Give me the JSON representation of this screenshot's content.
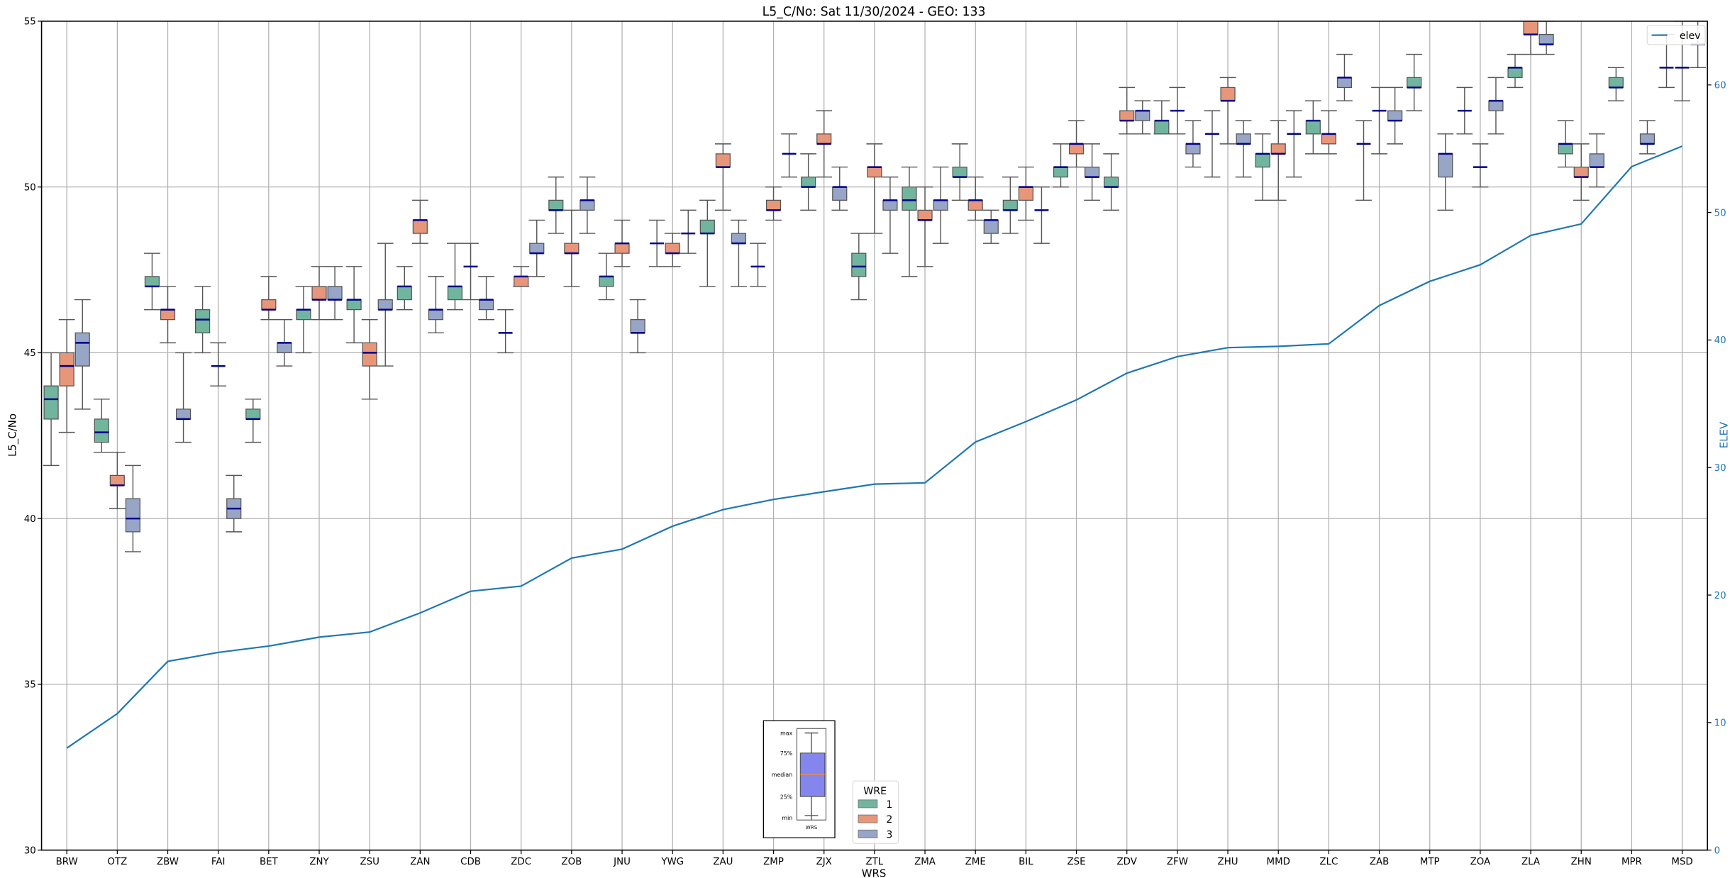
{
  "chart_data": {
    "type": "box",
    "title": "L5_C/No: Sat 11/30/2024 - GEO: 133",
    "xlabel": "WRS",
    "ylabel": "L5_C/No",
    "ylabel_right": "ELEV",
    "ylim": [
      30,
      55
    ],
    "ylim_right": [
      0,
      65
    ],
    "yticks": [
      30,
      35,
      40,
      45,
      50,
      55
    ],
    "yticks_right": [
      0,
      10,
      20,
      30,
      40,
      50,
      60
    ],
    "grid": true,
    "categories": [
      "BRW",
      "OTZ",
      "ZBW",
      "FAI",
      "BET",
      "ZNY",
      "ZSU",
      "ZAN",
      "CDB",
      "ZDC",
      "ZOB",
      "JNU",
      "YWG",
      "ZAU",
      "ZMP",
      "ZJX",
      "ZTL",
      "ZMA",
      "ZME",
      "BIL",
      "ZSE",
      "ZDV",
      "ZFW",
      "ZHU",
      "MMD",
      "ZLC",
      "ZAB",
      "MTP",
      "ZOA",
      "ZLA",
      "ZHN",
      "MPR",
      "MSD"
    ],
    "box_fields": [
      "min",
      "q1",
      "median",
      "q3",
      "max"
    ],
    "series": [
      {
        "name": "1",
        "color": "#72b59e",
        "boxes": [
          [
            41.6,
            43.0,
            43.6,
            44.0,
            45.0
          ],
          [
            42.0,
            42.3,
            42.6,
            43.0,
            43.6
          ],
          [
            46.3,
            47.0,
            47.0,
            47.3,
            48.0
          ],
          [
            45.0,
            45.6,
            46.0,
            46.3,
            47.0
          ],
          [
            42.3,
            43.0,
            43.0,
            43.3,
            43.6
          ],
          [
            45.0,
            46.0,
            46.3,
            46.3,
            47.0
          ],
          [
            45.3,
            46.3,
            46.6,
            46.6,
            47.6
          ],
          [
            46.3,
            46.6,
            47.0,
            47.0,
            47.6
          ],
          [
            46.3,
            46.6,
            47.0,
            47.0,
            48.3
          ],
          [
            45.0,
            45.6,
            45.6,
            45.6,
            46.3
          ],
          [
            48.6,
            49.3,
            49.3,
            49.6,
            50.3
          ],
          [
            46.6,
            47.0,
            47.3,
            47.3,
            48.0
          ],
          [
            47.6,
            48.3,
            48.3,
            48.3,
            49.0
          ],
          [
            47.0,
            48.6,
            48.6,
            49.0,
            49.6
          ],
          [
            47.0,
            47.6,
            47.6,
            47.6,
            48.3
          ],
          [
            49.3,
            50.0,
            50.0,
            50.3,
            51.0
          ],
          [
            46.6,
            47.3,
            47.6,
            48.0,
            48.6
          ],
          [
            47.3,
            49.3,
            49.6,
            50.0,
            50.6
          ],
          [
            49.6,
            50.3,
            50.3,
            50.6,
            51.3
          ],
          [
            48.6,
            49.3,
            49.3,
            49.6,
            50.3
          ],
          [
            50.0,
            50.3,
            50.6,
            50.6,
            51.3
          ],
          [
            49.3,
            50.0,
            50.0,
            50.3,
            51.0
          ],
          [
            51.6,
            51.6,
            52.0,
            52.0,
            52.6
          ],
          [
            50.3,
            51.6,
            51.6,
            51.6,
            52.3
          ],
          [
            49.6,
            50.6,
            51.0,
            51.0,
            51.6
          ],
          [
            51.0,
            51.6,
            52.0,
            52.0,
            52.6
          ],
          [
            49.6,
            51.3,
            51.3,
            51.3,
            52.0
          ],
          [
            52.3,
            53.0,
            53.0,
            53.3,
            54.0
          ],
          [
            51.6,
            52.3,
            52.3,
            52.3,
            53.0
          ],
          [
            53.0,
            53.3,
            53.6,
            53.6,
            54.0
          ],
          [
            50.6,
            51.0,
            51.3,
            51.3,
            52.0
          ],
          [
            52.6,
            53.0,
            53.0,
            53.3,
            53.6
          ],
          [
            53.0,
            53.6,
            53.6,
            53.6,
            54.6
          ]
        ]
      },
      {
        "name": "2",
        "color": "#e8967a",
        "boxes": [
          [
            42.6,
            44.0,
            44.6,
            45.0,
            46.0
          ],
          [
            40.3,
            41.0,
            41.0,
            41.3,
            42.0
          ],
          [
            45.3,
            46.0,
            46.3,
            46.3,
            47.0
          ],
          [
            44.0,
            44.6,
            44.6,
            44.6,
            45.3
          ],
          [
            46.0,
            46.3,
            46.3,
            46.6,
            47.3
          ],
          [
            46.0,
            46.6,
            46.6,
            47.0,
            47.6
          ],
          [
            43.6,
            44.6,
            45.0,
            45.3,
            46.0
          ],
          [
            48.3,
            48.6,
            49.0,
            49.0,
            49.6
          ],
          [
            46.6,
            47.6,
            47.6,
            47.6,
            48.3
          ],
          [
            47.0,
            47.0,
            47.3,
            47.3,
            47.6
          ],
          [
            47.0,
            48.0,
            48.0,
            48.3,
            49.3
          ],
          [
            47.6,
            48.0,
            48.3,
            48.3,
            49.0
          ],
          [
            47.6,
            48.0,
            48.0,
            48.3,
            48.6
          ],
          [
            49.3,
            50.6,
            50.6,
            51.0,
            51.3
          ],
          [
            49.0,
            49.3,
            49.3,
            49.6,
            50.0
          ],
          [
            50.3,
            51.3,
            51.3,
            51.6,
            52.3
          ],
          [
            48.6,
            50.3,
            50.6,
            50.6,
            51.3
          ],
          [
            47.6,
            49.0,
            49.0,
            49.3,
            50.0
          ],
          [
            49.0,
            49.3,
            49.6,
            49.6,
            50.3
          ],
          [
            49.0,
            49.6,
            50.0,
            50.0,
            50.6
          ],
          [
            50.6,
            51.0,
            51.3,
            51.3,
            52.0
          ],
          [
            51.6,
            52.0,
            52.0,
            52.3,
            53.0
          ],
          [
            51.6,
            52.3,
            52.3,
            52.3,
            53.0
          ],
          [
            51.3,
            52.6,
            52.6,
            53.0,
            53.3
          ],
          [
            49.6,
            51.0,
            51.0,
            51.3,
            52.0
          ],
          [
            51.0,
            51.3,
            51.6,
            51.6,
            52.3
          ],
          [
            51.0,
            52.3,
            52.3,
            52.3,
            53.0
          ],
          null,
          [
            50.0,
            50.6,
            50.6,
            50.6,
            51.3
          ],
          [
            54.0,
            54.6,
            54.6,
            55.0,
            55.3
          ],
          [
            49.6,
            50.3,
            50.3,
            50.6,
            51.3
          ],
          null,
          [
            52.6,
            53.6,
            53.6,
            53.6,
            55.0
          ]
        ]
      },
      {
        "name": "3",
        "color": "#97a5c7",
        "boxes": [
          [
            43.3,
            44.6,
            45.3,
            45.6,
            46.6
          ],
          [
            39.0,
            39.6,
            40.0,
            40.6,
            41.6
          ],
          [
            42.3,
            43.0,
            43.0,
            43.3,
            45.0
          ],
          [
            39.6,
            40.0,
            40.3,
            40.6,
            41.3
          ],
          [
            44.6,
            45.0,
            45.3,
            45.3,
            46.0
          ],
          [
            46.0,
            46.6,
            46.6,
            47.0,
            47.6
          ],
          [
            44.6,
            46.3,
            46.3,
            46.6,
            48.3
          ],
          [
            45.6,
            46.0,
            46.3,
            46.3,
            47.3
          ],
          [
            46.0,
            46.3,
            46.6,
            46.6,
            47.3
          ],
          [
            47.3,
            48.0,
            48.0,
            48.3,
            49.0
          ],
          [
            48.6,
            49.3,
            49.6,
            49.6,
            50.3
          ],
          [
            45.0,
            45.6,
            45.6,
            46.0,
            46.6
          ],
          [
            48.0,
            48.6,
            48.6,
            48.6,
            49.3
          ],
          [
            47.0,
            48.3,
            48.3,
            48.6,
            49.0
          ],
          [
            50.3,
            51.0,
            51.0,
            51.0,
            51.6
          ],
          [
            49.3,
            49.6,
            50.0,
            50.0,
            50.6
          ],
          [
            48.0,
            49.3,
            49.6,
            49.6,
            50.3
          ],
          [
            48.3,
            49.3,
            49.6,
            49.6,
            50.6
          ],
          [
            48.3,
            48.6,
            49.0,
            49.0,
            49.3
          ],
          [
            48.3,
            49.3,
            49.3,
            49.3,
            50.0
          ],
          [
            49.6,
            50.3,
            50.3,
            50.6,
            51.3
          ],
          [
            51.6,
            52.0,
            52.3,
            52.3,
            52.6
          ],
          [
            50.6,
            51.0,
            51.3,
            51.3,
            52.0
          ],
          [
            50.3,
            51.3,
            51.3,
            51.6,
            52.0
          ],
          [
            50.3,
            51.6,
            51.6,
            51.6,
            52.3
          ],
          [
            52.6,
            53.0,
            53.3,
            53.3,
            54.0
          ],
          [
            51.3,
            52.0,
            52.0,
            52.3,
            53.0
          ],
          [
            49.3,
            50.3,
            51.0,
            51.0,
            51.6
          ],
          [
            51.6,
            52.3,
            52.6,
            52.6,
            53.3
          ],
          [
            54.0,
            54.3,
            54.3,
            54.6,
            55.0
          ],
          [
            50.0,
            50.6,
            50.6,
            51.0,
            51.6
          ],
          [
            51.0,
            51.3,
            51.3,
            51.6,
            52.0
          ],
          [
            53.6,
            54.3,
            54.3,
            54.3,
            55.0
          ]
        ]
      }
    ],
    "elev": {
      "name": "elev",
      "color": "#1f77b4",
      "values": [
        8.0,
        10.7,
        14.8,
        15.5,
        16.0,
        16.7,
        17.1,
        18.6,
        20.3,
        20.7,
        22.9,
        23.6,
        25.4,
        26.7,
        27.5,
        28.1,
        28.7,
        28.8,
        32.0,
        33.6,
        35.3,
        37.4,
        38.7,
        39.4,
        39.5,
        39.7,
        42.7,
        44.6,
        45.9,
        48.2,
        49.1,
        53.6,
        55.2
      ]
    },
    "legend": {
      "title": "WRE",
      "placement": "bottom-center",
      "elev_placement": "top-right"
    },
    "example_box": {
      "labels": [
        "max",
        "75%",
        "median",
        "25%",
        "min"
      ],
      "xlabel": "WRS",
      "color": "#8585ee",
      "median_color": "#ff8c1a"
    }
  }
}
